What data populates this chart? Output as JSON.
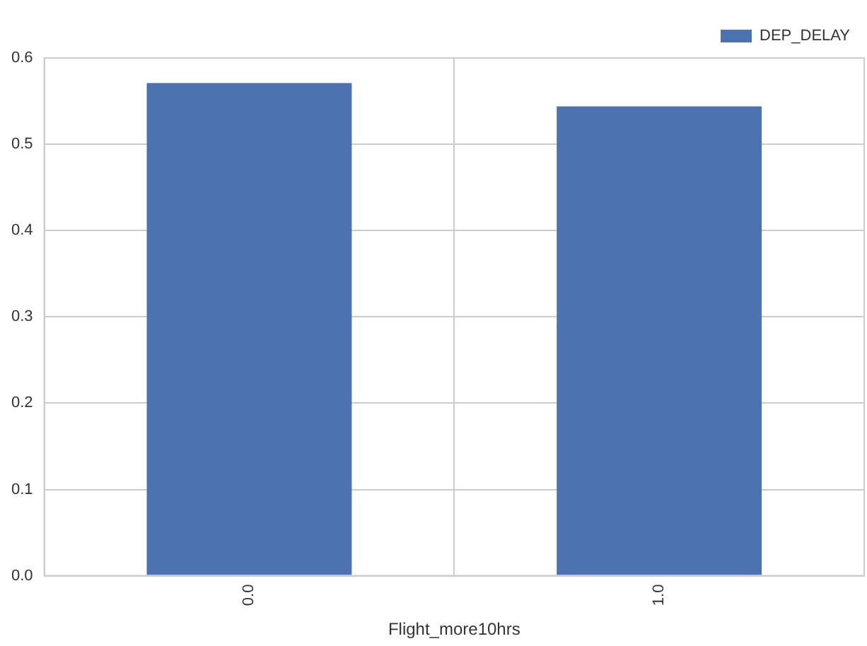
{
  "chart_data": {
    "type": "bar",
    "xlabel": "Flight_more10hrs",
    "categories": [
      "0.0",
      "1.0"
    ],
    "series": [
      {
        "name": "DEP_DELAY",
        "color": "#4c72b0",
        "values": [
          0.571,
          0.544
        ]
      }
    ],
    "ylim": [
      0,
      0.6
    ],
    "yticks": [
      {
        "value": 0,
        "label": "0.0"
      },
      {
        "value": 0.1,
        "label": "0.1"
      },
      {
        "value": 0.2,
        "label": "0.2"
      },
      {
        "value": 0.3,
        "label": "0.3"
      },
      {
        "value": 0.4,
        "label": "0.4"
      },
      {
        "value": 0.5,
        "label": "0.5"
      },
      {
        "value": 0.6,
        "label": "0.6"
      }
    ],
    "grid": true,
    "legend": "top right"
  }
}
